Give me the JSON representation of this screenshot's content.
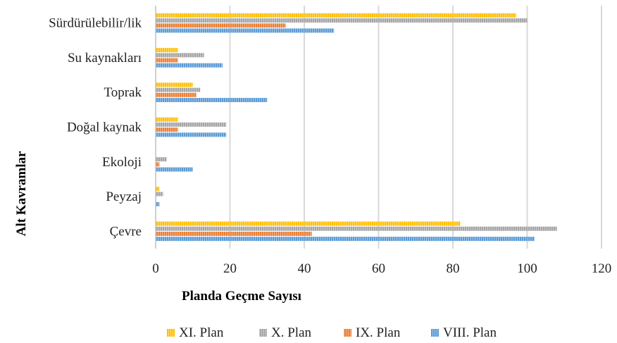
{
  "chart_data": {
    "type": "bar",
    "orientation": "horizontal",
    "categories": [
      "Çevre",
      "Peyzaj",
      "Ekoloji",
      "Doğal kaynak",
      "Toprak",
      "Su kaynakları",
      "Sürdürülebilir/lik"
    ],
    "series": [
      {
        "name": "XI. Plan",
        "color": "#FFC000",
        "values": [
          82,
          1,
          0,
          6,
          10,
          6,
          97
        ]
      },
      {
        "name": "X. Plan",
        "color": "#A5A5A5",
        "values": [
          108,
          2,
          3,
          19,
          12,
          13,
          100
        ]
      },
      {
        "name": "IX. Plan",
        "color": "#ED7D31",
        "values": [
          42,
          0,
          1,
          6,
          11,
          6,
          35
        ]
      },
      {
        "name": "VIII. Plan",
        "color": "#5B9BD5",
        "values": [
          102,
          1,
          10,
          19,
          30,
          18,
          48
        ]
      }
    ],
    "xlabel": "Planda Geçme Sayısı",
    "ylabel": "Alt Kavramlar",
    "xlim": [
      0,
      120
    ],
    "xticks": [
      0,
      20,
      40,
      60,
      80,
      100,
      120
    ],
    "grid": "vertical",
    "legend_position": "bottom",
    "legend_order": [
      "XI. Plan",
      "X. Plan",
      "IX. Plan",
      "VIII. Plan"
    ]
  }
}
